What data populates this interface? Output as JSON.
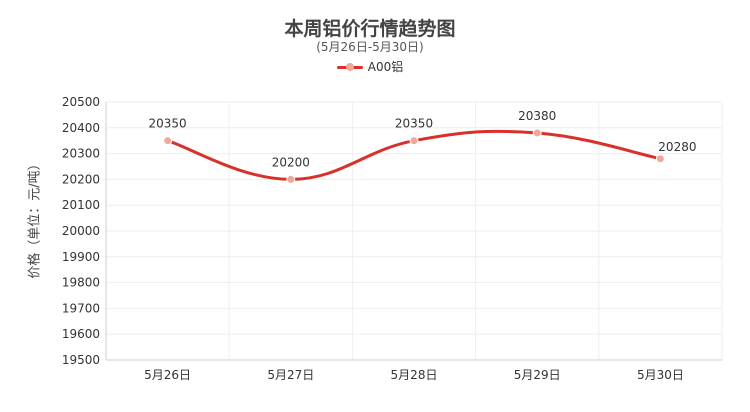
{
  "chart_data": {
    "type": "line",
    "title": "本周铝价行情趋势图",
    "subtitle": "(5月26日-5月30日)",
    "ylabel": "价格（单位：元/吨）",
    "xlabel": "",
    "categories": [
      "5月26日",
      "5月27日",
      "5月28日",
      "5月29日",
      "5月30日"
    ],
    "series": [
      {
        "name": "A00铝",
        "values": [
          20350,
          20200,
          20350,
          20380,
          20280
        ]
      }
    ],
    "ylim": [
      19500,
      20500
    ],
    "yticks": [
      "19500",
      "19600",
      "19700",
      "19800",
      "19900",
      "20000",
      "20100",
      "20200",
      "20300",
      "20400",
      "20500"
    ],
    "data_labels": [
      "20350",
      "20200",
      "20350",
      "20380",
      "20280"
    ],
    "grid": true,
    "smooth": true,
    "legend_position": "top-center",
    "colors": {
      "line": "#d9302b",
      "marker": "#f0a898",
      "grid": "#eeeeee",
      "axis": "#cccccc"
    }
  }
}
